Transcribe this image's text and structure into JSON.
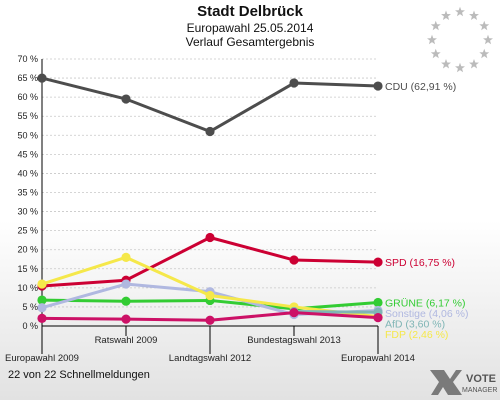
{
  "chart_data": {
    "type": "line",
    "title": "Stadt Delbrück",
    "subtitle1": "Europawahl 25.05.2014",
    "subtitle2": "Verlauf Gesamtergebnis",
    "categories": [
      "Europawahl 2009",
      "Ratswahl 2009",
      "Landtagswahl 2012",
      "Bundestagswahl 2013",
      "Europawahl 2014"
    ],
    "ylim": [
      0,
      70
    ],
    "yticks": [
      "0 %",
      "5 %",
      "10 %",
      "15 %",
      "20 %",
      "25 %",
      "30 %",
      "35 %",
      "40 %",
      "45 %",
      "50 %",
      "55 %",
      "60 %",
      "65 %",
      "70 %"
    ],
    "grid": "horizontal",
    "series": [
      {
        "name": "CDU",
        "label": "CDU (62,91 %)",
        "color": "#4d4d4d",
        "values": [
          65.0,
          59.5,
          51.0,
          63.7,
          62.91
        ]
      },
      {
        "name": "SPD",
        "label": "SPD (16,75 %)",
        "color": "#cc0033",
        "values": [
          10.5,
          12.0,
          23.2,
          17.3,
          16.75
        ]
      },
      {
        "name": "GRÜNE",
        "label": "GRÜNE (6,17 %)",
        "color": "#33cc33",
        "values": [
          6.8,
          6.5,
          6.7,
          4.5,
          6.17
        ]
      },
      {
        "name": "Sonstige",
        "label": "Sonstige (4,06 %)",
        "color": "#b0b8e0",
        "values": [
          4.8,
          11.0,
          9.0,
          3.0,
          4.06
        ]
      },
      {
        "name": "FDP",
        "label": "FDP (2,46 %)",
        "color": "#f5e84a",
        "values": [
          11.0,
          18.0,
          8.0,
          5.0,
          2.46
        ]
      },
      {
        "name": "AfD",
        "label": "AfD (3,60 %)",
        "color": "#7fb5b5",
        "values": [
          null,
          null,
          null,
          3.8,
          3.6
        ]
      },
      {
        "name": "other",
        "label": "",
        "color": "#cc1166",
        "values": [
          2.0,
          1.8,
          1.5,
          3.5,
          2.2
        ]
      }
    ]
  },
  "footer": {
    "status": "22 von 22 Schnellmeldungen"
  },
  "brand": {
    "line1": "VOTE",
    "line2": "MANAGER"
  },
  "colors": {
    "eu_stars": "#bbbbbb"
  }
}
